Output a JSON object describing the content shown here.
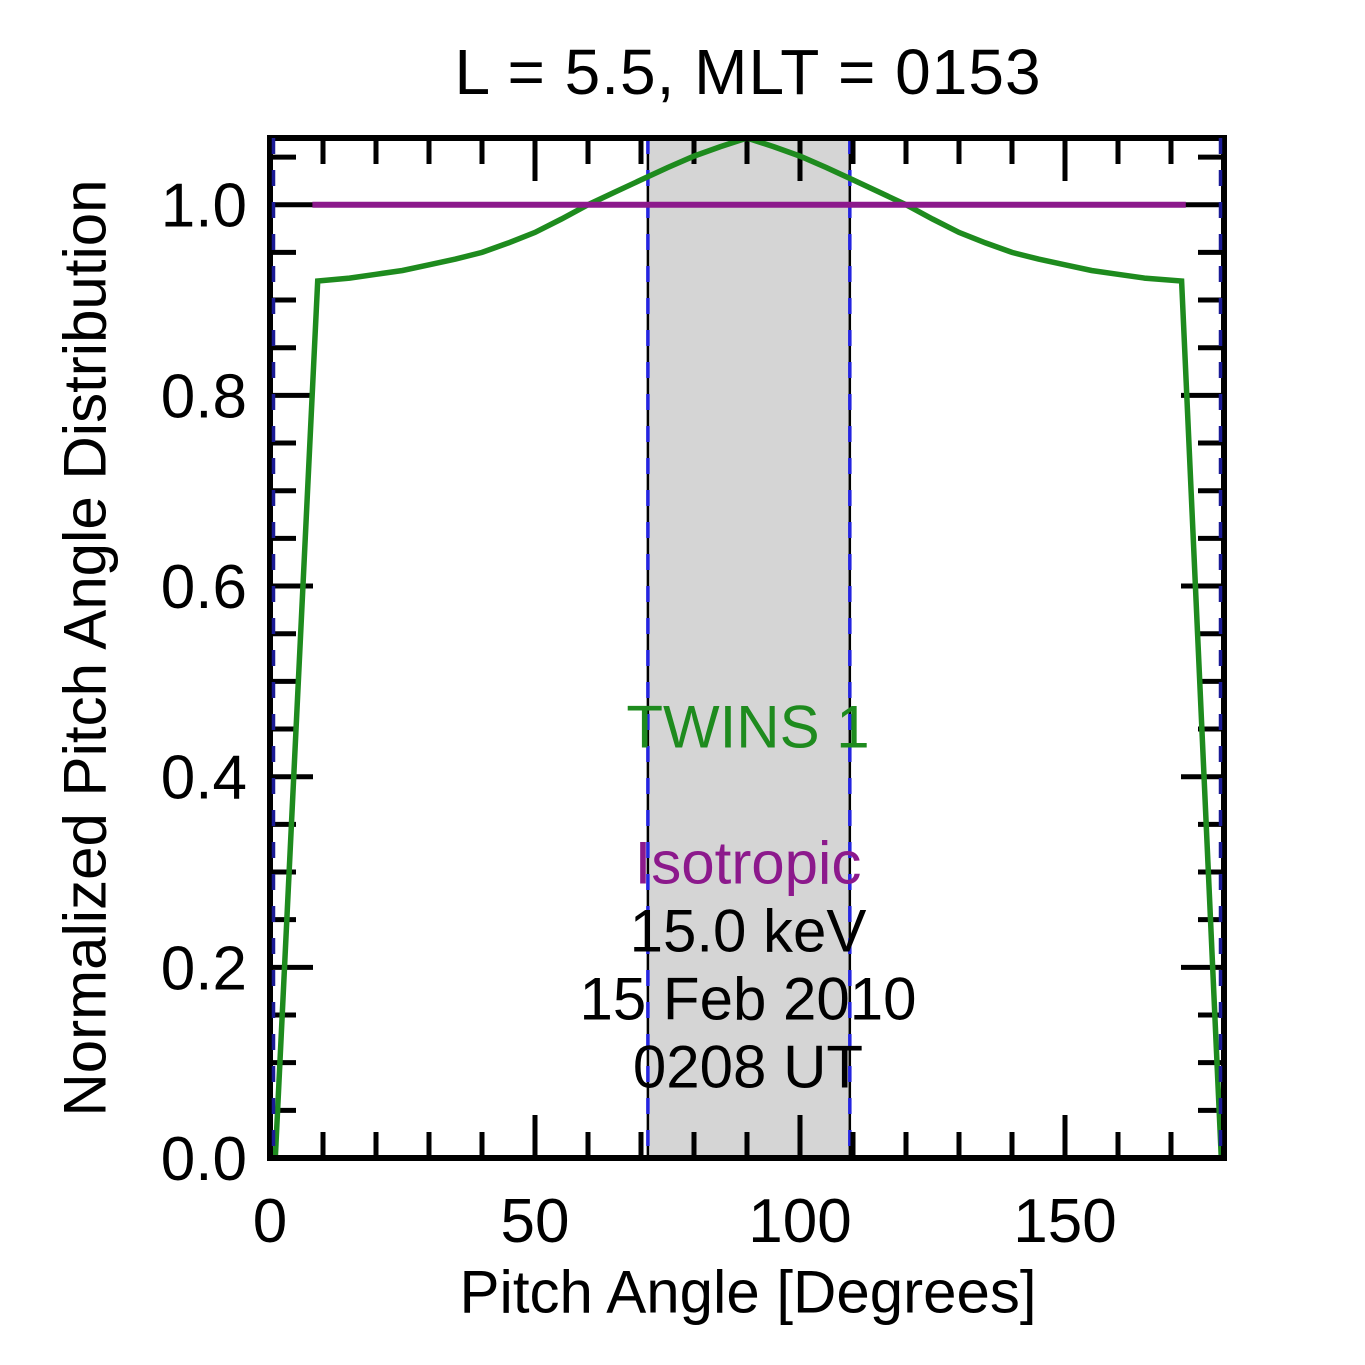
{
  "figure": {
    "background": "#ffffff",
    "frame_color": "#000000"
  },
  "chart_data": {
    "type": "line",
    "title": "L =  5.5, MLT = 0153",
    "xlabel": "Pitch Angle [Degrees]",
    "ylabel": "Normalized Pitch Angle Distribution",
    "xlim": [
      0,
      180
    ],
    "ylim": [
      0,
      1.07
    ],
    "x_major_ticks": [
      0,
      50,
      100,
      150
    ],
    "x_tick_labels": [
      "0",
      "50",
      "100",
      "150"
    ],
    "x_minor_step": 10,
    "y_major_ticks": [
      0.0,
      0.2,
      0.4,
      0.6,
      0.8,
      1.0
    ],
    "y_tick_labels": [
      "0.0",
      "0.2",
      "0.4",
      "0.6",
      "0.8",
      "1.0"
    ],
    "y_minor_step": 0.05,
    "grid": "off",
    "legend_position": "inline-annotations",
    "shaded_band": {
      "x_start": 71.3,
      "x_end": 109.4,
      "color": "#d5d5d5"
    },
    "vertical_guides": [
      {
        "x": 0.6,
        "color": "#1b1b96",
        "style": "dashed",
        "backing": "none"
      },
      {
        "x": 71.3,
        "color": "#2424e0",
        "style": "dashed",
        "backing": "black"
      },
      {
        "x": 109.4,
        "color": "#2424e0",
        "style": "dashed",
        "backing": "black"
      },
      {
        "x": 179.4,
        "color": "#1b1b96",
        "style": "dashed",
        "backing": "none"
      }
    ],
    "series": [
      {
        "name": "TWINS 1",
        "color": "#1e8b1e",
        "width": 5.5,
        "points": [
          [
            1,
            0
          ],
          [
            9,
            0.92
          ],
          [
            15,
            0.923
          ],
          [
            20,
            0.927
          ],
          [
            25,
            0.931
          ],
          [
            30,
            0.937
          ],
          [
            35,
            0.943
          ],
          [
            40,
            0.95
          ],
          [
            45,
            0.96
          ],
          [
            50,
            0.971
          ],
          [
            55,
            0.985
          ],
          [
            60,
            1.0
          ],
          [
            65,
            1.013
          ],
          [
            70,
            1.026
          ],
          [
            75,
            1.039
          ],
          [
            80,
            1.051
          ],
          [
            85,
            1.061
          ],
          [
            90,
            1.07
          ],
          [
            95,
            1.061
          ],
          [
            100,
            1.051
          ],
          [
            105,
            1.039
          ],
          [
            110,
            1.026
          ],
          [
            115,
            1.013
          ],
          [
            120,
            1.0
          ],
          [
            125,
            0.985
          ],
          [
            130,
            0.971
          ],
          [
            135,
            0.96
          ],
          [
            140,
            0.95
          ],
          [
            145,
            0.943
          ],
          [
            150,
            0.937
          ],
          [
            155,
            0.931
          ],
          [
            160,
            0.927
          ],
          [
            165,
            0.923
          ],
          [
            172,
            0.92
          ],
          [
            179.5,
            0
          ]
        ]
      },
      {
        "name": "Isotropic",
        "color": "#8c198c",
        "width": 6,
        "points": [
          [
            8,
            1.0
          ],
          [
            172.8,
            1.0
          ]
        ]
      }
    ]
  },
  "annotations": {
    "series_twins1": "TWINS 1",
    "series_isotropic": "Isotropic",
    "energy": "15.0 keV",
    "date": "15 Feb 2010",
    "time": "0208 UT",
    "twins1_color": "#1e8b1e",
    "isotropic_color": "#8c198c"
  }
}
